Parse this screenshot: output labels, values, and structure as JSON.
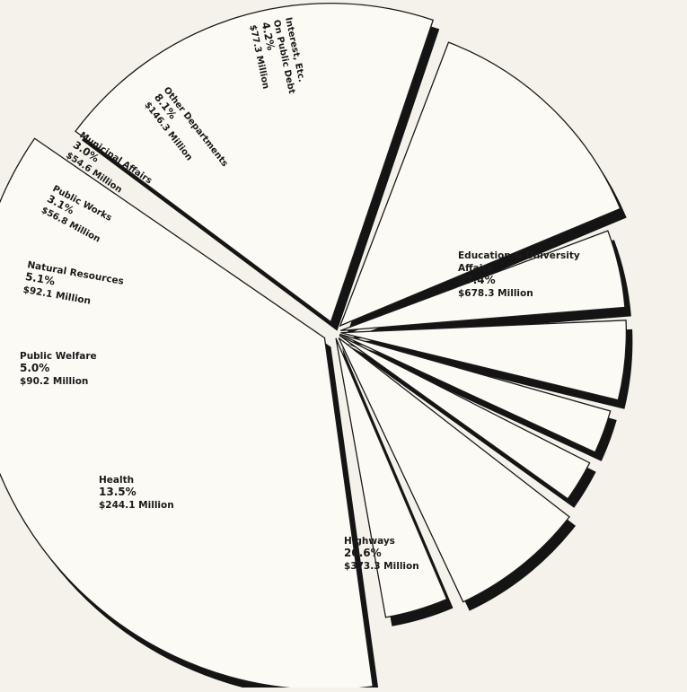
{
  "chart_data": {
    "type": "pie",
    "title": "",
    "units": "Million",
    "slices": [
      {
        "name": "Education & University Affairs",
        "label_lines": [
          "Education & University",
          "Affairs"
        ],
        "percent": 37.4,
        "percent_text": "37.4%",
        "amount": 678.3,
        "amount_text": "$678.3 Million"
      },
      {
        "name": "Highways",
        "label_lines": [
          "Highways"
        ],
        "percent": 20.6,
        "percent_text": "20.6%",
        "amount": 373.3,
        "amount_text": "$373.3 Million"
      },
      {
        "name": "Health",
        "label_lines": [
          "Health"
        ],
        "percent": 13.5,
        "percent_text": "13.5%",
        "amount": 244.1,
        "amount_text": "$244.1 Million"
      },
      {
        "name": "Public Welfare",
        "label_lines": [
          "Public Welfare"
        ],
        "percent": 5.0,
        "percent_text": "5.0%",
        "amount": 90.2,
        "amount_text": "$90.2 Million"
      },
      {
        "name": "Natural Resources",
        "label_lines": [
          "Natural Resources"
        ],
        "percent": 5.1,
        "percent_text": "5.1%",
        "amount": 92.1,
        "amount_text": "$92.1 Million"
      },
      {
        "name": "Public Works",
        "label_lines": [
          "Public Works"
        ],
        "percent": 3.1,
        "percent_text": "3.1%",
        "amount": 56.8,
        "amount_text": "$56.8 Million"
      },
      {
        "name": "Municipal Affairs",
        "label_lines": [
          "Municipal Affairs"
        ],
        "percent": 3.0,
        "percent_text": "3.0%",
        "amount": 54.6,
        "amount_text": "$54.6 Million"
      },
      {
        "name": "Other Departments",
        "label_lines": [
          "Other Departments"
        ],
        "percent": 8.1,
        "percent_text": "8.1%",
        "amount": 146.3,
        "amount_text": "$146.3 Million"
      },
      {
        "name": "Interest, Etc. On Public Debt",
        "label_lines": [
          "Interest, Etc.",
          "On Public Debt"
        ],
        "percent": 4.2,
        "percent_text": "4.2%",
        "amount": 77.3,
        "amount_text": "$77.3 Million"
      }
    ],
    "legend": "none",
    "exploded": true,
    "shadowed": true
  }
}
